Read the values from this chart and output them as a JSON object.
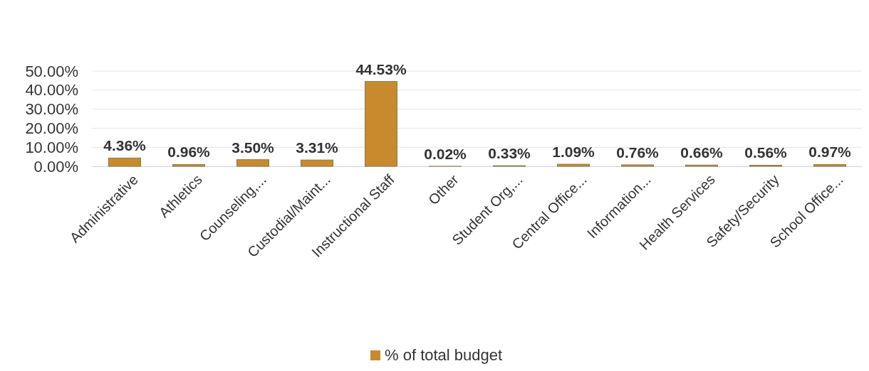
{
  "chart_data": {
    "type": "bar",
    "categories": [
      "Administrative",
      "Athletics",
      "Counseling,...",
      "Custodial/Maint...",
      "Instructional Staff",
      "Other",
      "Student Org,...",
      "Central Office...",
      "Information...",
      "Health Services",
      "Safety/Security",
      "School Office..."
    ],
    "series": [
      {
        "name": "% of total budget",
        "color": "#c98a2e",
        "values": [
          4.36,
          0.96,
          3.5,
          3.31,
          44.53,
          0.02,
          0.33,
          1.09,
          0.76,
          0.66,
          0.56,
          0.97
        ],
        "value_labels": [
          "4.36%",
          "0.96%",
          "3.50%",
          "3.31%",
          "44.53%",
          "0.02%",
          "0.33%",
          "1.09%",
          "0.76%",
          "0.66%",
          "0.56%",
          "0.97%"
        ]
      }
    ],
    "ylim": [
      0,
      50
    ],
    "yticks": [
      {
        "value": 0,
        "label": "0.00%"
      },
      {
        "value": 10,
        "label": "10.00%"
      },
      {
        "value": 20,
        "label": "20.00%"
      },
      {
        "value": 30,
        "label": "30.00%"
      },
      {
        "value": 40,
        "label": "40.00%"
      },
      {
        "value": 50,
        "label": "50.00%"
      }
    ],
    "grid": true,
    "legend": "bottom"
  }
}
